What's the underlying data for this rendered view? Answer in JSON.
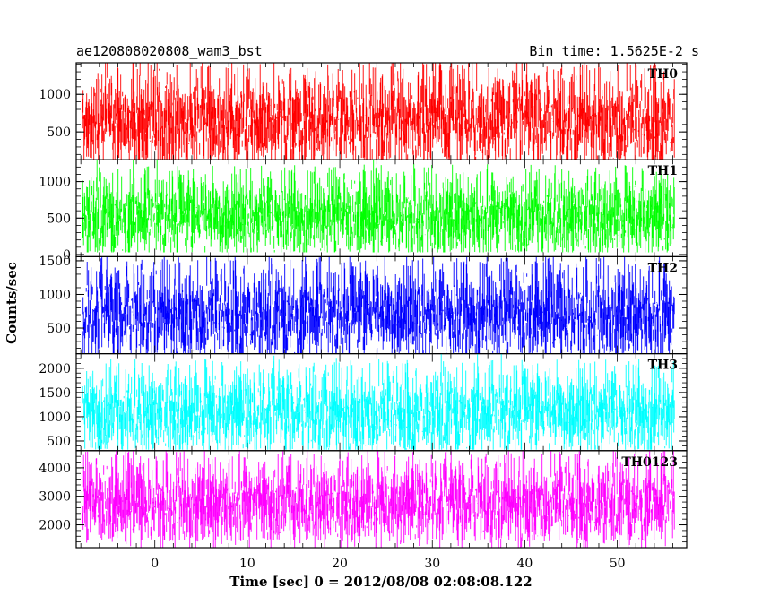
{
  "header": {
    "left": "ae120808020808_wam3_bst",
    "right": "Bin time: 1.5625E-2 s"
  },
  "chart_data": {
    "type": "line",
    "xlabel": "Time [sec] 0 = 2012/08/08 02:08:08.122",
    "ylabel": "Counts/sec",
    "xlim": [
      -8.5,
      57.5
    ],
    "x_tick_labels": [
      "0",
      "10",
      "20",
      "30",
      "40",
      "50"
    ],
    "x_ticks": [
      0,
      10,
      20,
      30,
      40,
      50
    ],
    "x_data_range": [
      -7.8,
      56.2
    ],
    "panels": [
      {
        "name": "TH0",
        "color": "#ff0000",
        "ylim": [
          130,
          1420
        ],
        "yticks": [
          500,
          1000
        ],
        "ytick_labels": [
          "500",
          "1000"
        ],
        "mean": 640,
        "sd": 240,
        "lo": 120,
        "hi": 1420
      },
      {
        "name": "TH1",
        "color": "#00ff00",
        "ylim": [
          -30,
          1300
        ],
        "yticks": [
          0,
          500,
          1000
        ],
        "ytick_labels": [
          "0",
          "500",
          "1000"
        ],
        "mean": 520,
        "sd": 210,
        "lo": 30,
        "hi": 1300
      },
      {
        "name": "TH2",
        "color": "#0000ff",
        "ylim": [
          120,
          1560
        ],
        "yticks": [
          500,
          1000,
          1500
        ],
        "ytick_labels": [
          "500",
          "1000",
          "1500"
        ],
        "mean": 700,
        "sd": 260,
        "lo": 120,
        "hi": 1560
      },
      {
        "name": "TH3",
        "color": "#00ffff",
        "ylim": [
          300,
          2300
        ],
        "yticks": [
          500,
          1000,
          1500,
          2000
        ],
        "ytick_labels": [
          "500",
          "1000",
          "1500",
          "2000"
        ],
        "mean": 1080,
        "sd": 330,
        "lo": 320,
        "hi": 2300
      },
      {
        "name": "TH0123",
        "color": "#ff00ff",
        "ylim": [
          1200,
          4600
        ],
        "yticks": [
          2000,
          3000,
          4000
        ],
        "ytick_labels": [
          "2000",
          "3000",
          "4000"
        ],
        "mean": 2750,
        "sd": 560,
        "lo": 1200,
        "hi": 4600
      }
    ]
  }
}
